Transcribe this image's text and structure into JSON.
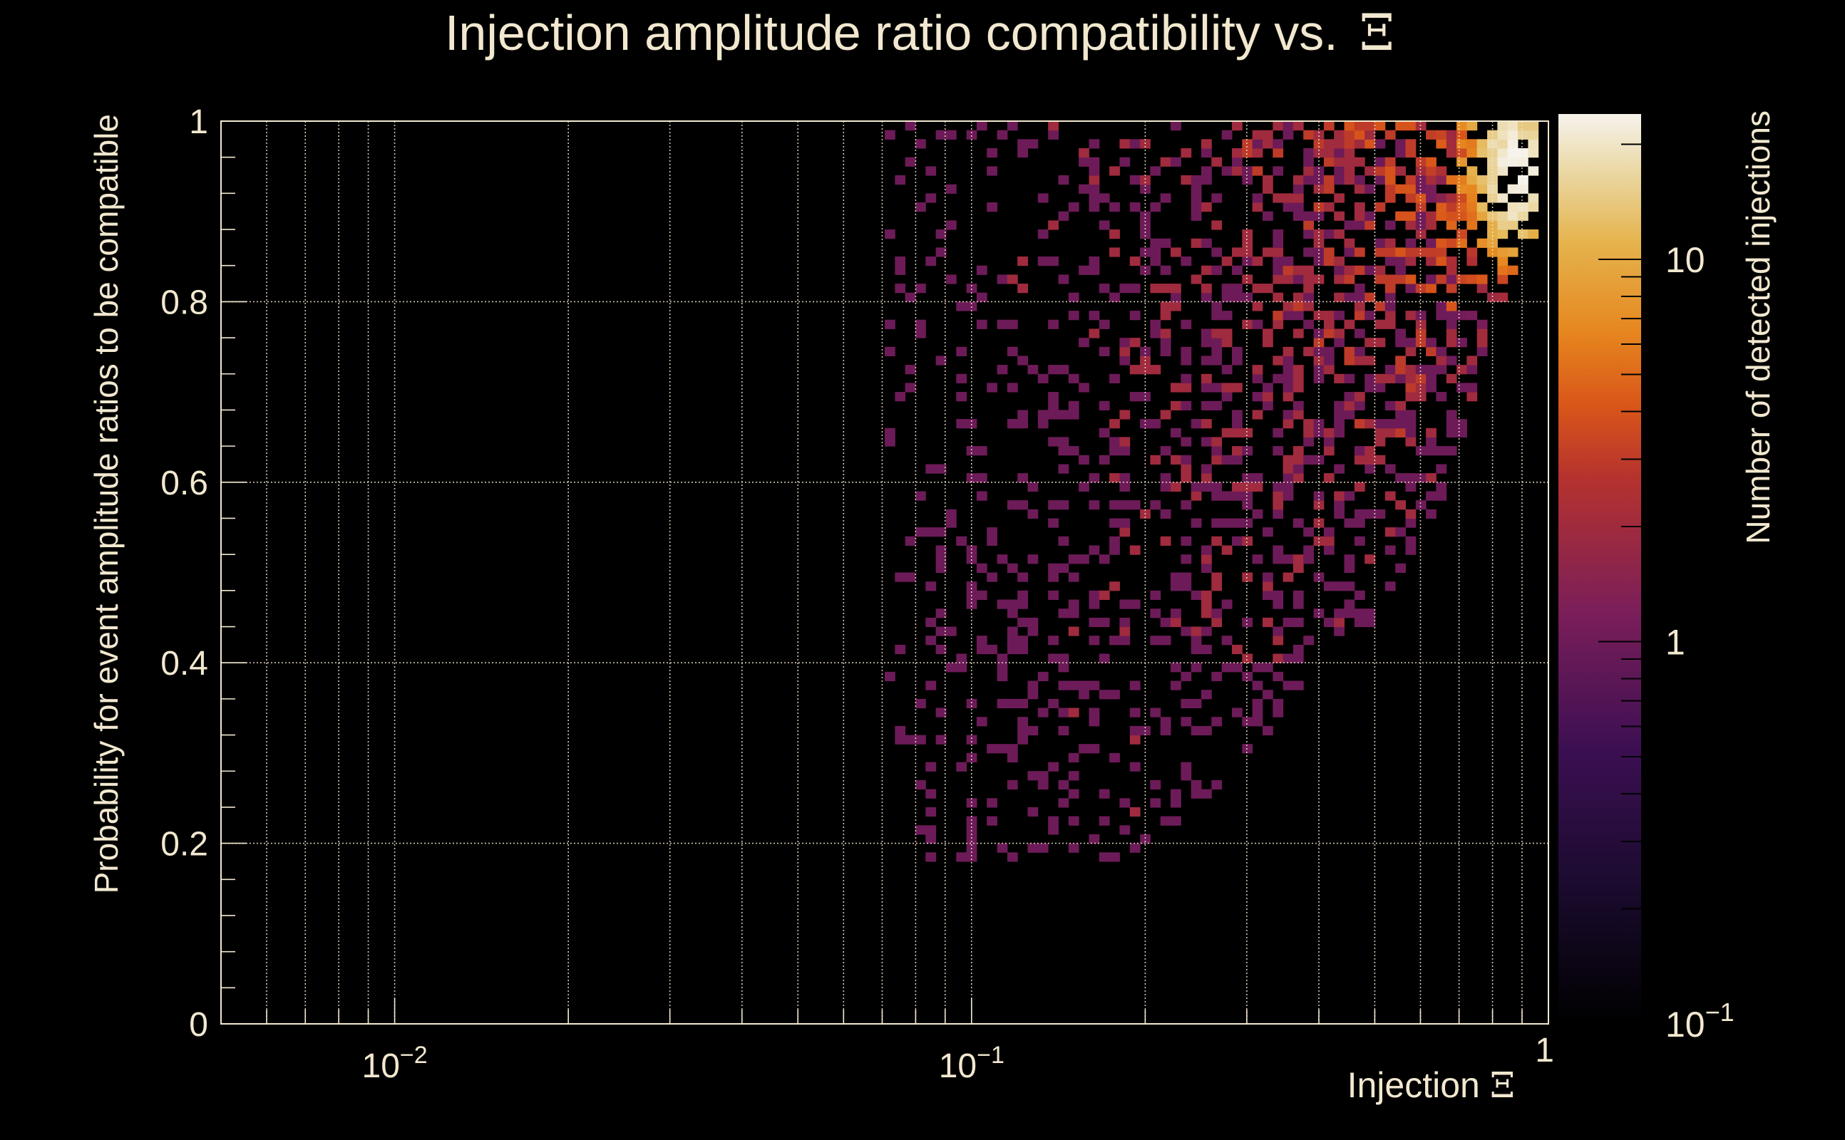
{
  "chart_data": {
    "type": "heatmap",
    "title": "Injection amplitude ratio compatibility vs.",
    "title_symbol": "Ξ",
    "xlabel": "Injection",
    "xlabel_symbol": "Ξ",
    "ylabel": "Probability for event amplitude ratios to be compatible",
    "zlabel": "Number of detected injections",
    "x_scale": "log",
    "xlim": [
      0.005,
      1
    ],
    "ylim": [
      0,
      1
    ],
    "z_scale": "log",
    "zlim": [
      0.1,
      24
    ],
    "x_ticks": [
      {
        "value": 0.01,
        "base": "10",
        "exp": "−2"
      },
      {
        "value": 0.1,
        "base": "10",
        "exp": "−1"
      },
      {
        "value": 1,
        "base": "1",
        "exp": ""
      }
    ],
    "y_ticks": [
      {
        "value": 0,
        "label": "0"
      },
      {
        "value": 0.2,
        "label": "0.2"
      },
      {
        "value": 0.4,
        "label": "0.4"
      },
      {
        "value": 0.6,
        "label": "0.6"
      },
      {
        "value": 0.8,
        "label": "0.8"
      },
      {
        "value": 1,
        "label": "1"
      }
    ],
    "z_ticks": [
      {
        "value": 0.1,
        "base": "10",
        "exp": "−1"
      },
      {
        "value": 1,
        "base": "1",
        "exp": ""
      },
      {
        "value": 10,
        "base": "10",
        "exp": ""
      }
    ],
    "grid": true,
    "bins": {
      "x": 130,
      "y": 100
    },
    "occupied_region": {
      "x_min": 0.07,
      "x_max": 0.95,
      "lower_edge": [
        [
          0.07,
          0.18
        ],
        [
          0.2,
          0.18
        ],
        [
          0.3,
          0.3
        ],
        [
          0.5,
          0.45
        ],
        [
          0.7,
          0.62
        ],
        [
          0.8,
          0.78
        ],
        [
          0.95,
          0.88
        ]
      ],
      "peak": {
        "x": 0.88,
        "y": 0.94,
        "count": 22
      }
    },
    "colormap": [
      "#000000",
      "#1a0b2e",
      "#3b0f52",
      "#7a1e5a",
      "#b5322e",
      "#d9561a",
      "#e6861e",
      "#e5b44e",
      "#ebd9a8",
      "#f6f3ec"
    ]
  }
}
